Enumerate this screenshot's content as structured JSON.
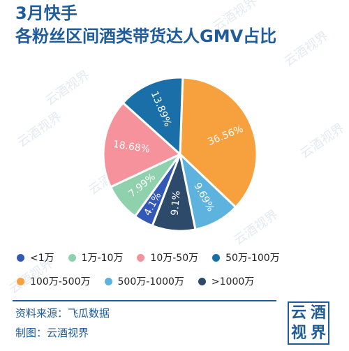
{
  "title_line1": "3月快手",
  "title_line2": "各粉丝区间酒类带货达人GMV占比",
  "watermark": "云酒视界",
  "footer": {
    "source": "资料来源：飞瓜数据",
    "maker": "制图：云酒视界"
  },
  "logo": {
    "chars": [
      "云",
      "酒",
      "视",
      "界"
    ]
  },
  "chart_data": {
    "type": "pie",
    "unit": "%",
    "start_angle_deg": 2,
    "legend_placement": "bottom",
    "slices": [
      {
        "name": "100万-500万",
        "value": 36.56,
        "label": "36.56%",
        "color": "#f7a13e"
      },
      {
        "name": "500万-1000万",
        "value": 9.69,
        "label": "9.69%",
        "color": "#5eb3de"
      },
      {
        "name": ">1000万",
        "value": 9.1,
        "label": "9.1%",
        "color": "#2e4a6b"
      },
      {
        "name": "<1万",
        "value": 4.1,
        "label": "4.1%",
        "color": "#3358b5"
      },
      {
        "name": "1万-10万",
        "value": 7.99,
        "label": "7.99%",
        "color": "#8fd1ad"
      },
      {
        "name": "10万-50万",
        "value": 18.68,
        "label": "18.68%",
        "color": "#f5929c"
      },
      {
        "name": "50万-100万",
        "value": 13.89,
        "label": "13.89%",
        "color": "#1a6fa8"
      }
    ],
    "legend_rows": [
      [
        "<1万",
        "1万-10万",
        "10万-50万",
        "50万-100万"
      ],
      [
        "100万-500万",
        "500万-1000万",
        ">1000万"
      ]
    ]
  }
}
